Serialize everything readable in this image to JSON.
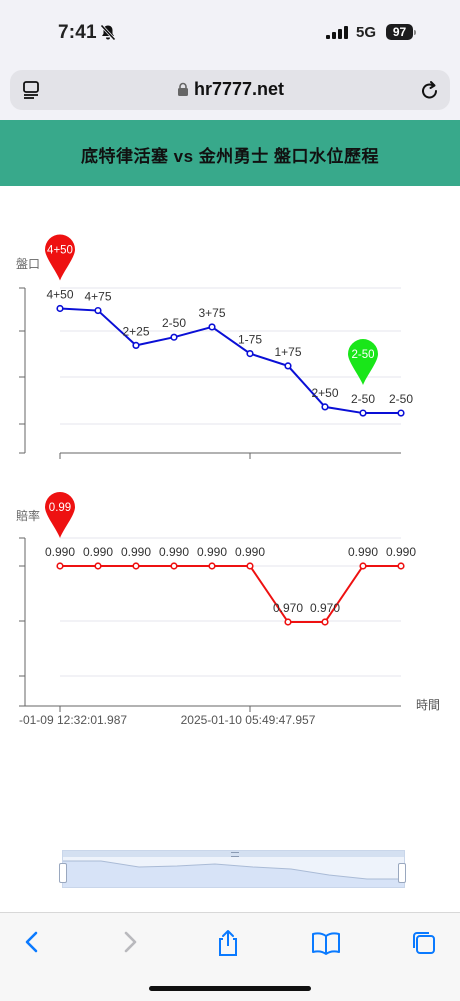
{
  "status_bar": {
    "time": "7:41",
    "network": "5G",
    "battery": "97"
  },
  "browser": {
    "url": "hr7777.net"
  },
  "header": {
    "title": "底特律活塞 vs 金州勇士 盤口水位歷程"
  },
  "chart_data": [
    {
      "type": "line",
      "ylabel": "盤口",
      "categories": [
        "4+50",
        "4+75",
        "2+25",
        "2-50",
        "3+75",
        "1-75",
        "1+75",
        "2+50",
        "2-50",
        "2-50"
      ],
      "values": [
        4.5,
        4.45,
        3.6,
        3.8,
        4.05,
        3.4,
        3.1,
        2.1,
        1.95,
        1.95
      ],
      "color": "#0a0fd6",
      "markers": [
        {
          "label": "4+50",
          "index": 0,
          "color": "#ee1111",
          "kind": "max"
        },
        {
          "label": "2-50",
          "index": 8,
          "color": "#19e619",
          "kind": "min"
        }
      ]
    },
    {
      "type": "line",
      "ylabel": "賠率",
      "xlabel": "時間",
      "x_ticks": [
        "-01-09 12:32:01.987",
        "2025-01-10 05:49:47.957"
      ],
      "values": [
        0.99,
        0.99,
        0.99,
        0.99,
        0.99,
        0.99,
        0.97,
        0.97,
        0.99,
        0.99
      ],
      "labels": [
        "0.990",
        "0.990",
        "0.990",
        "0.990",
        "0.990",
        "0.990",
        "0.970",
        "0.970",
        "0.990",
        "0.990"
      ],
      "color": "#ee1111",
      "markers": [
        {
          "label": "0.99",
          "index": 0,
          "color": "#ee1111",
          "kind": "max"
        }
      ]
    }
  ]
}
